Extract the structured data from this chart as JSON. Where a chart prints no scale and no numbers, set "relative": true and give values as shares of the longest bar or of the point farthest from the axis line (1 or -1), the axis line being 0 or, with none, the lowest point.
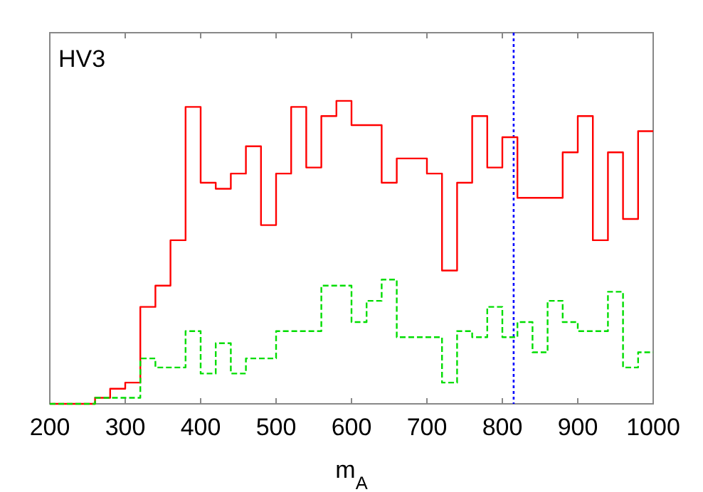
{
  "chart_data": {
    "type": "step",
    "relative": true,
    "xlabel": "m$_{A}$",
    "annotations": [
      "HV3"
    ],
    "xlim": [
      200,
      1000
    ],
    "xticks": [
      200,
      300,
      400,
      500,
      600,
      700,
      800,
      900,
      1000
    ],
    "tick_labels": "x",
    "x": [
      200,
      220,
      240,
      260,
      280,
      300,
      320,
      340,
      360,
      380,
      400,
      420,
      440,
      460,
      480,
      500,
      520,
      540,
      560,
      580,
      600,
      620,
      640,
      660,
      680,
      700,
      720,
      740,
      760,
      780,
      800,
      820,
      840,
      860,
      880,
      900,
      920,
      940,
      960,
      980,
      1000
    ],
    "series": [
      {
        "color": "#ff0000",
        "line_style": "solid",
        "values": [
          0,
          0,
          0,
          0.02,
          0.05,
          0.07,
          0.32,
          0.39,
          0.54,
          0.98,
          0.73,
          0.71,
          0.76,
          0.85,
          0.59,
          0.76,
          0.98,
          0.78,
          0.95,
          1,
          0.92,
          0.92,
          0.73,
          0.81,
          0.81,
          0.76,
          0.44,
          0.73,
          0.95,
          0.78,
          0.88,
          0.68,
          0.68,
          0.68,
          0.83,
          0.95,
          0.54,
          0.83,
          0.61,
          0.9,
          0.9
        ]
      },
      {
        "color": "#00dd00",
        "line_style": "dashed",
        "values": [
          0,
          0,
          0,
          0.02,
          0.02,
          0.02,
          0.15,
          0.12,
          0.12,
          0.24,
          0.1,
          0.2,
          0.1,
          0.15,
          0.15,
          0.24,
          0.24,
          0.24,
          0.39,
          0.39,
          0.27,
          0.34,
          0.41,
          0.22,
          0.22,
          0.22,
          0.07,
          0.24,
          0.22,
          0.32,
          0.22,
          0.27,
          0.17,
          0.34,
          0.27,
          0.24,
          0.24,
          0.37,
          0.12,
          0.17,
          0.17
        ]
      }
    ],
    "ref_lines": [
      {
        "axis": "x",
        "value": 815,
        "color": "#0000ff",
        "line_style": "dotted"
      }
    ]
  }
}
